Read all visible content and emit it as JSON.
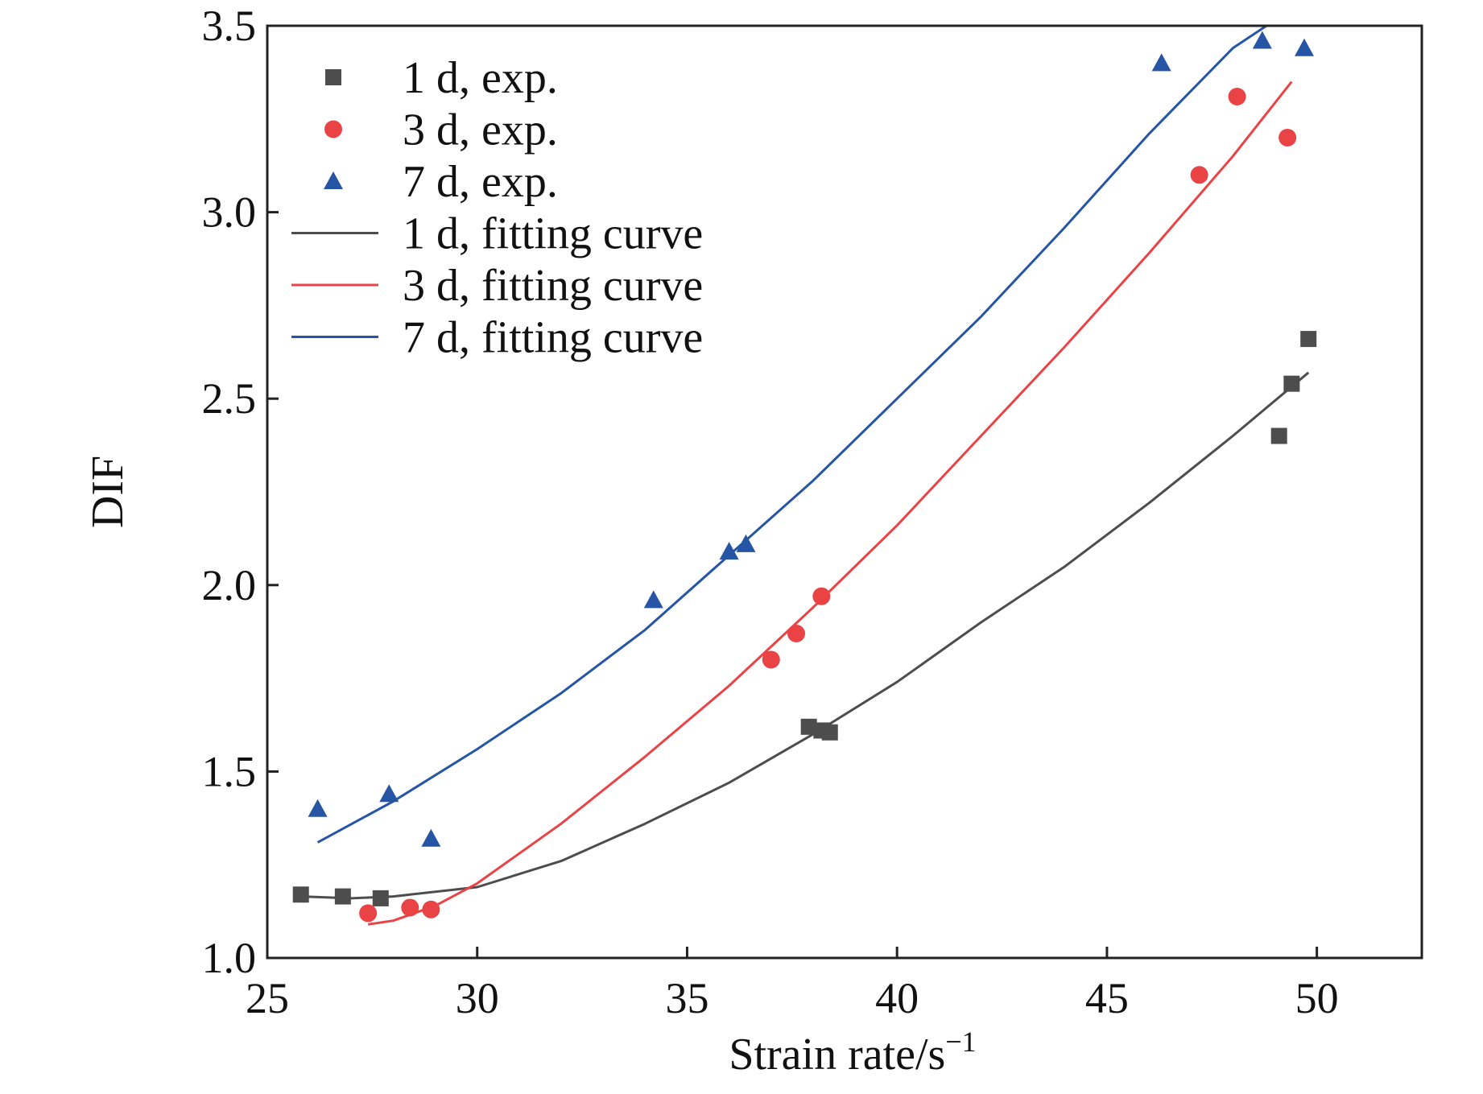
{
  "chart_data": {
    "type": "scatter",
    "title": "",
    "xlabel": "Strain rate/s",
    "xlabel_superscript": "−1",
    "ylabel": "DIF",
    "xlim": [
      25,
      52.5
    ],
    "ylim": [
      1.0,
      3.5
    ],
    "xticks": [
      25,
      30,
      35,
      40,
      45,
      50
    ],
    "yticks": [
      1.0,
      1.5,
      2.0,
      2.5,
      3.0,
      3.5
    ],
    "xtick_labels": [
      "25",
      "30",
      "35",
      "40",
      "45",
      "50"
    ],
    "ytick_labels": [
      "1.0",
      "1.5",
      "2.0",
      "2.5",
      "3.0",
      "3.5"
    ],
    "grid": false,
    "legend_position": "top-left",
    "series": [
      {
        "name": "1 d, exp.",
        "kind": "scatter",
        "marker": "square",
        "color": "#4d4d4d",
        "points": [
          [
            25.8,
            1.17
          ],
          [
            26.8,
            1.165
          ],
          [
            27.7,
            1.16
          ],
          [
            37.9,
            1.62
          ],
          [
            38.2,
            1.61
          ],
          [
            38.4,
            1.605
          ],
          [
            49.1,
            2.4
          ],
          [
            49.4,
            2.54
          ],
          [
            49.8,
            2.66
          ]
        ]
      },
      {
        "name": "3 d, exp.",
        "kind": "scatter",
        "marker": "circle",
        "color": "#ea4345",
        "points": [
          [
            27.4,
            1.12
          ],
          [
            28.4,
            1.135
          ],
          [
            28.9,
            1.13
          ],
          [
            37.0,
            1.8
          ],
          [
            37.6,
            1.87
          ],
          [
            38.2,
            1.97
          ],
          [
            47.2,
            3.1
          ],
          [
            48.1,
            3.31
          ],
          [
            49.3,
            3.2
          ]
        ]
      },
      {
        "name": "7 d, exp.",
        "kind": "scatter",
        "marker": "triangle",
        "color": "#2555a4",
        "points": [
          [
            26.2,
            1.4
          ],
          [
            27.9,
            1.44
          ],
          [
            28.9,
            1.32
          ],
          [
            34.2,
            1.96
          ],
          [
            36.0,
            2.09
          ],
          [
            36.4,
            2.11
          ],
          [
            46.3,
            3.4
          ],
          [
            48.7,
            3.46
          ],
          [
            49.7,
            3.44
          ]
        ]
      },
      {
        "name": "1 d, fitting curve",
        "kind": "line",
        "color": "#4d4d4d",
        "points": [
          [
            25.8,
            1.165
          ],
          [
            27.0,
            1.16
          ],
          [
            28.0,
            1.165
          ],
          [
            30.0,
            1.19
          ],
          [
            32.0,
            1.26
          ],
          [
            34.0,
            1.36
          ],
          [
            36.0,
            1.47
          ],
          [
            38.0,
            1.6
          ],
          [
            40.0,
            1.74
          ],
          [
            42.0,
            1.9
          ],
          [
            44.0,
            2.05
          ],
          [
            46.0,
            2.22
          ],
          [
            48.0,
            2.4
          ],
          [
            49.8,
            2.57
          ]
        ]
      },
      {
        "name": "3 d, fitting curve",
        "kind": "line",
        "color": "#ea4345",
        "points": [
          [
            27.4,
            1.09
          ],
          [
            28.0,
            1.1
          ],
          [
            29.0,
            1.14
          ],
          [
            30.0,
            1.2
          ],
          [
            32.0,
            1.36
          ],
          [
            34.0,
            1.54
          ],
          [
            36.0,
            1.73
          ],
          [
            38.0,
            1.94
          ],
          [
            40.0,
            2.16
          ],
          [
            42.0,
            2.4
          ],
          [
            44.0,
            2.64
          ],
          [
            46.0,
            2.89
          ],
          [
            48.0,
            3.15
          ],
          [
            49.4,
            3.35
          ]
        ]
      },
      {
        "name": "7 d, fitting curve",
        "kind": "line",
        "color": "#2555a4",
        "points": [
          [
            26.2,
            1.31
          ],
          [
            28.0,
            1.42
          ],
          [
            30.0,
            1.56
          ],
          [
            32.0,
            1.71
          ],
          [
            34.0,
            1.88
          ],
          [
            36.0,
            2.08
          ],
          [
            38.0,
            2.28
          ],
          [
            40.0,
            2.5
          ],
          [
            42.0,
            2.72
          ],
          [
            44.0,
            2.96
          ],
          [
            46.0,
            3.21
          ],
          [
            48.0,
            3.44
          ],
          [
            48.8,
            3.5
          ]
        ]
      }
    ]
  }
}
